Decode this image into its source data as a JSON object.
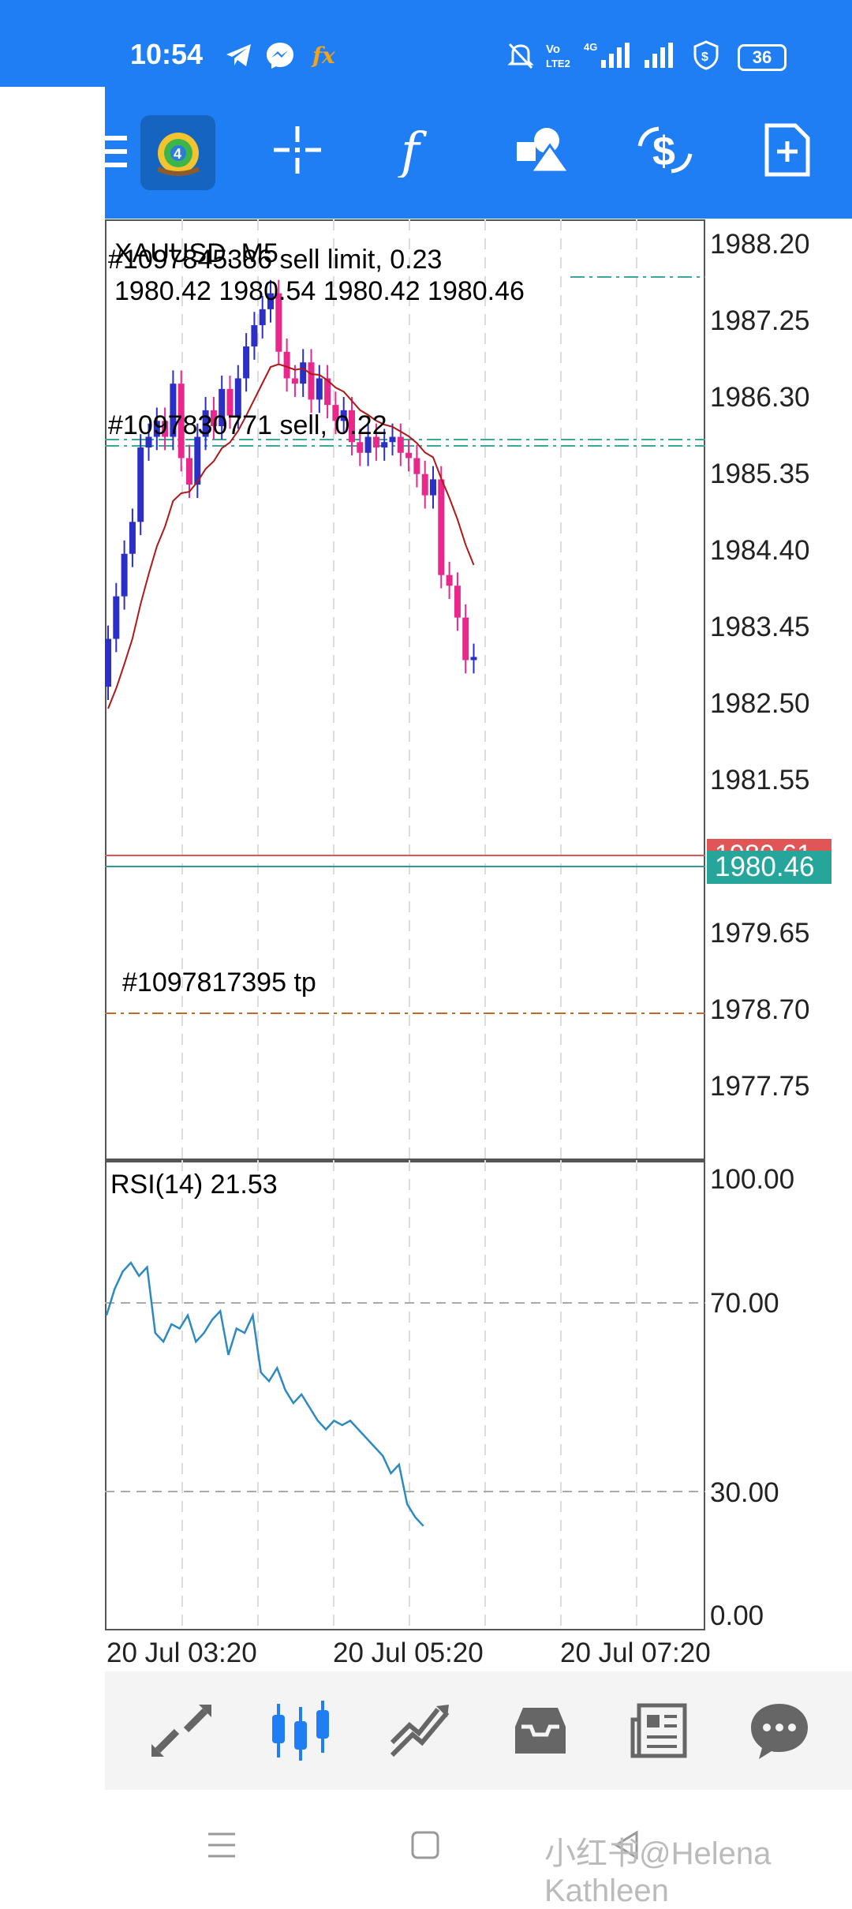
{
  "status_bar": {
    "time": "10:54",
    "left_icons": [
      "telegram-icon",
      "messenger-icon",
      "fx-icon"
    ],
    "right_icons": [
      "mute-icon",
      "volte-icon",
      "4g-signal-icon",
      "signal-icon",
      "vpn-shield-icon"
    ],
    "battery": "36",
    "background": "#1f7ef4"
  },
  "toolbar": {
    "icons": [
      "menu-icon",
      "metatrader-logo-icon",
      "crosshair-icon",
      "indicator-f-icon",
      "objects-icon",
      "currency-icon",
      "new-order-icon"
    ]
  },
  "main_chart": {
    "symbol_label": "XAUUSD, M5",
    "order_label_1": "#1097845386 sell limit, 0.23",
    "ohlc": "1980.42 1980.54 1980.42 1980.46",
    "order_label_2": "#1097830771 sell, 0.22",
    "order_label_3": "#1097817395 tp",
    "price_axis": [
      "1988.20",
      "1987.25",
      "1986.30",
      "1985.35",
      "1984.40",
      "1983.45",
      "1982.50",
      "1981.55",
      "1979.65",
      "1978.70",
      "1977.75"
    ],
    "bid_tag": "1980.46",
    "ask_tag": "1980.61",
    "bid_color": "#26a69a",
    "ask_color": "#e05555",
    "bull_color": "#2b2fc6",
    "bear_color": "#e8288a",
    "ma_color": "#b01818"
  },
  "rsi_chart": {
    "label": "RSI(14) 21.53",
    "axis": [
      "100.00",
      "70.00",
      "30.00",
      "0.00"
    ],
    "line_color": "#2d8ac0"
  },
  "time_axis": [
    "20 Jul 03:20",
    "20 Jul 05:20",
    "20 Jul 07:20"
  ],
  "bottom_nav": {
    "items": [
      "quotes-icon",
      "chart-icon",
      "trade-icon",
      "history-icon",
      "news-icon",
      "messages-icon"
    ],
    "active": "chart-icon",
    "active_color": "#1f7ef4"
  },
  "system_nav": [
    "recent-apps-icon",
    "home-icon",
    "back-icon"
  ],
  "watermark": "小红书@Helena Kathleen"
}
